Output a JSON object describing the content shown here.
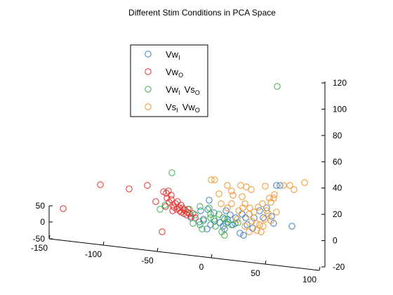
{
  "chart_data": {
    "type": "scatter",
    "title": "Different Stim Conditions in PCA Space",
    "projection": "3d",
    "grid": false,
    "legend": {
      "placement": "top-left",
      "entries": [
        {
          "base": "Vw",
          "sub": "I",
          "base2": "",
          "sub2": "",
          "color": "#3b7fc4"
        },
        {
          "base": "Vw",
          "sub": "O",
          "base2": "",
          "sub2": "",
          "color": "#e03030"
        },
        {
          "base": "Vw",
          "sub": "I",
          "base2": "Vs",
          "sub2": "O",
          "color": "#3fae49"
        },
        {
          "base": "Vs",
          "sub": "I",
          "base2": "Vw",
          "sub2": "O",
          "color": "#f0932b"
        }
      ]
    },
    "axes": {
      "x": {
        "ticks": [
          "-150",
          "-100",
          "-50",
          "0",
          "50",
          "100"
        ]
      },
      "y": {
        "ticks": [
          "-50",
          "0",
          "50"
        ]
      },
      "z": {
        "ticks": [
          "-20",
          "0",
          "20",
          "40",
          "60",
          "80",
          "100",
          "120"
        ]
      }
    },
    "series": [
      {
        "color": "#3b7fc4",
        "points": [
          [
            394,
            264
          ],
          [
            399,
            264
          ],
          [
            416,
            322
          ],
          [
            347,
            335
          ],
          [
            342,
            332
          ],
          [
            352,
            320
          ],
          [
            360,
            325
          ],
          [
            345,
            305
          ],
          [
            350,
            310
          ],
          [
            336,
            310
          ],
          [
            325,
            316
          ],
          [
            332,
            320
          ],
          [
            320,
            326
          ],
          [
            313,
            317
          ],
          [
            306,
            315
          ],
          [
            300,
            320
          ],
          [
            295,
            326
          ],
          [
            296,
            298
          ],
          [
            305,
            303
          ],
          [
            298,
            285
          ],
          [
            320,
            312
          ],
          [
            318,
            322
          ],
          [
            322,
            300
          ],
          [
            328,
            306
          ],
          [
            335,
            318
          ],
          [
            370,
            300
          ],
          [
            375,
            310
          ],
          [
            380,
            296
          ],
          [
            387,
            308
          ],
          [
            390,
            318
          ],
          [
            362,
            310
          ],
          [
            290,
            312
          ],
          [
            286,
            300
          ],
          [
            284,
            316
          ],
          [
            272,
            310
          ]
        ]
      },
      {
        "color": "#e03030",
        "points": [
          [
            90,
            297
          ],
          [
            143,
            263
          ],
          [
            184,
            269
          ],
          [
            210,
            264
          ],
          [
            222,
            287
          ],
          [
            231,
            330
          ],
          [
            233,
            273
          ],
          [
            237,
            275
          ],
          [
            240,
            272
          ],
          [
            238,
            282
          ],
          [
            241,
            288
          ],
          [
            244,
            284
          ],
          [
            246,
            292
          ],
          [
            248,
            295
          ],
          [
            250,
            290
          ],
          [
            252,
            298
          ],
          [
            255,
            296
          ],
          [
            256,
            300
          ],
          [
            258,
            302
          ],
          [
            260,
            296
          ],
          [
            262,
            304
          ],
          [
            264,
            300
          ],
          [
            266,
            306
          ],
          [
            268,
            298
          ],
          [
            270,
            304
          ],
          [
            272,
            308
          ],
          [
            275,
            304
          ],
          [
            278,
            310
          ],
          [
            246,
            300
          ],
          [
            236,
            294
          ],
          [
            253,
            287
          ],
          [
            258,
            292
          ],
          [
            262,
            298
          ],
          [
            267,
            302
          ],
          [
            244,
            278
          ]
        ]
      },
      {
        "color": "#3fae49",
        "points": [
          [
            395,
            123
          ],
          [
            245,
            246
          ],
          [
            228,
            298
          ],
          [
            235,
            292
          ],
          [
            270,
            298
          ],
          [
            278,
            306
          ],
          [
            285,
            320
          ],
          [
            290,
            314
          ],
          [
            300,
            305
          ],
          [
            305,
            312
          ],
          [
            312,
            305
          ],
          [
            318,
            310
          ],
          [
            324,
            312
          ],
          [
            330,
            320
          ],
          [
            316,
            330
          ],
          [
            320,
            335
          ],
          [
            300,
            310
          ],
          [
            275,
            318
          ],
          [
            288,
            326
          ],
          [
            307,
            322
          ],
          [
            322,
            318
          ],
          [
            339,
            317
          ],
          [
            298,
            296
          ],
          [
            285,
            294
          ]
        ]
      },
      {
        "color": "#f0932b",
        "points": [
          [
            434,
            260
          ],
          [
            301,
            256
          ],
          [
            306,
            256
          ],
          [
            324,
            264
          ],
          [
            343,
            264
          ],
          [
            351,
            266
          ],
          [
            358,
            270
          ],
          [
            378,
            265
          ],
          [
            404,
            264
          ],
          [
            413,
            264
          ],
          [
            419,
            270
          ],
          [
            330,
            272
          ],
          [
            312,
            276
          ],
          [
            332,
            278
          ],
          [
            345,
            280
          ],
          [
            349,
            290
          ],
          [
            356,
            296
          ],
          [
            362,
            302
          ],
          [
            368,
            295
          ],
          [
            374,
            290
          ],
          [
            384,
            282
          ],
          [
            386,
            288
          ],
          [
            390,
            282
          ],
          [
            391,
            277
          ],
          [
            380,
            300
          ],
          [
            386,
            314
          ],
          [
            366,
            328
          ],
          [
            372,
            330
          ],
          [
            377,
            312
          ],
          [
            370,
            320
          ],
          [
            349,
            322
          ],
          [
            355,
            330
          ],
          [
            359,
            315
          ],
          [
            365,
            318
          ],
          [
            340,
            300
          ],
          [
            346,
            296
          ],
          [
            330,
            290
          ],
          [
            324,
            296
          ],
          [
            315,
            290
          ],
          [
            338,
            312
          ],
          [
            355,
            305
          ],
          [
            375,
            322
          ],
          [
            382,
            304
          ],
          [
            394,
            302
          ]
        ]
      }
    ]
  }
}
